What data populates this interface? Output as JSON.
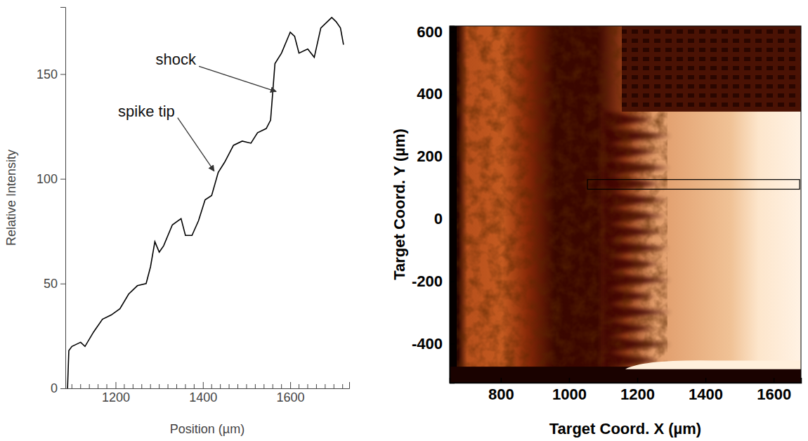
{
  "chart_data": [
    {
      "type": "line",
      "xlabel": "Position (µm)",
      "ylabel": "Relative Intensity",
      "x": [
        1090,
        1093,
        1100,
        1120,
        1130,
        1150,
        1170,
        1190,
        1210,
        1230,
        1250,
        1270,
        1280,
        1290,
        1300,
        1310,
        1330,
        1350,
        1360,
        1375,
        1390,
        1405,
        1420,
        1435,
        1450,
        1470,
        1490,
        1510,
        1525,
        1545,
        1555,
        1565,
        1580,
        1600,
        1610,
        1620,
        1640,
        1655,
        1670,
        1685,
        1695,
        1705,
        1715,
        1722
      ],
      "values": [
        0,
        18,
        20,
        22,
        20,
        27,
        33,
        35,
        38,
        45,
        49,
        50,
        58,
        70,
        65,
        68,
        78,
        81,
        73,
        73,
        80,
        90,
        92,
        103,
        108,
        116,
        118,
        117,
        122,
        124,
        128,
        155,
        160,
        170,
        168,
        160,
        162,
        158,
        172,
        175,
        177,
        175,
        172,
        164
      ],
      "color": "#000000",
      "xlim": [
        1085,
        1735
      ],
      "ylim": [
        0,
        182
      ],
      "xticks": [
        1200,
        1400,
        1600
      ],
      "minor_xticks": [
        1100,
        1120,
        1140,
        1160,
        1180,
        1220,
        1240,
        1260,
        1280,
        1300,
        1320,
        1340,
        1360,
        1380,
        1420,
        1440,
        1460,
        1480,
        1500,
        1520,
        1540,
        1560,
        1580,
        1620,
        1640,
        1660,
        1680,
        1700,
        1720
      ],
      "yticks": [
        0,
        50,
        100,
        150
      ],
      "annotations": [
        {
          "text": "shock",
          "x": 1571,
          "y": 141
        },
        {
          "text": "spike tip",
          "x": 1429,
          "y": 103
        }
      ]
    },
    {
      "type": "image",
      "xlabel": "Target Coord. X (µm)",
      "ylabel": "Target Coord. Y (µm)",
      "xlim": [
        650,
        1680
      ],
      "ylim": [
        -525,
        618
      ],
      "xticks": [
        800,
        1000,
        1200,
        1400,
        1600
      ],
      "yticks": [
        600,
        400,
        200,
        0,
        -200,
        -400
      ],
      "lineout_box": {
        "x": [
          1054,
          1676
        ],
        "y": [
          95,
          126
        ]
      }
    }
  ]
}
